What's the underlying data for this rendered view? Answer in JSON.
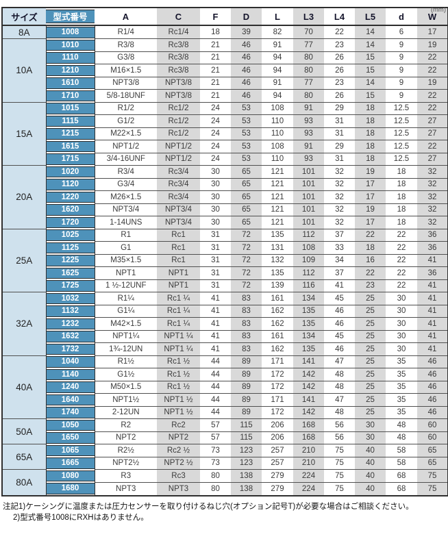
{
  "unit_label": "(mm)",
  "table": {
    "headers": [
      "サイズ",
      "型式番号",
      "A",
      "C",
      "F",
      "D",
      "L",
      "L3",
      "L4",
      "L5",
      "d",
      "W"
    ],
    "groups": [
      {
        "size": "8A",
        "rows": [
          [
            "1008",
            "R1/4",
            "Rc1/4",
            "18",
            "39",
            "82",
            "70",
            "22",
            "14",
            "6",
            "17"
          ]
        ]
      },
      {
        "size": "10A",
        "rows": [
          [
            "1010",
            "R3/8",
            "Rc3/8",
            "21",
            "46",
            "91",
            "77",
            "23",
            "14",
            "9",
            "19"
          ],
          [
            "1110",
            "G3/8",
            "Rc3/8",
            "21",
            "46",
            "94",
            "80",
            "26",
            "15",
            "9",
            "22"
          ],
          [
            "1210",
            "M16×1.5",
            "Rc3/8",
            "21",
            "46",
            "94",
            "80",
            "26",
            "15",
            "9",
            "22"
          ],
          [
            "1610",
            "NPT3/8",
            "NPT3/8",
            "21",
            "46",
            "91",
            "77",
            "23",
            "14",
            "9",
            "19"
          ],
          [
            "1710",
            "5/8-18UNF",
            "NPT3/8",
            "21",
            "46",
            "94",
            "80",
            "26",
            "15",
            "9",
            "22"
          ]
        ]
      },
      {
        "size": "15A",
        "rows": [
          [
            "1015",
            "R1/2",
            "Rc1/2",
            "24",
            "53",
            "108",
            "91",
            "29",
            "18",
            "12.5",
            "22"
          ],
          [
            "1115",
            "G1/2",
            "Rc1/2",
            "24",
            "53",
            "110",
            "93",
            "31",
            "18",
            "12.5",
            "27"
          ],
          [
            "1215",
            "M22×1.5",
            "Rc1/2",
            "24",
            "53",
            "110",
            "93",
            "31",
            "18",
            "12.5",
            "27"
          ],
          [
            "1615",
            "NPT1/2",
            "NPT1/2",
            "24",
            "53",
            "108",
            "91",
            "29",
            "18",
            "12.5",
            "22"
          ],
          [
            "1715",
            "3/4-16UNF",
            "NPT1/2",
            "24",
            "53",
            "110",
            "93",
            "31",
            "18",
            "12.5",
            "27"
          ]
        ]
      },
      {
        "size": "20A",
        "rows": [
          [
            "1020",
            "R3/4",
            "Rc3/4",
            "30",
            "65",
            "121",
            "101",
            "32",
            "19",
            "18",
            "32"
          ],
          [
            "1120",
            "G3/4",
            "Rc3/4",
            "30",
            "65",
            "121",
            "101",
            "32",
            "17",
            "18",
            "32"
          ],
          [
            "1220",
            "M26×1.5",
            "Rc3/4",
            "30",
            "65",
            "121",
            "101",
            "32",
            "17",
            "18",
            "32"
          ],
          [
            "1620",
            "NPT3/4",
            "NPT3/4",
            "30",
            "65",
            "121",
            "101",
            "32",
            "19",
            "18",
            "32"
          ],
          [
            "1720",
            "1-14UNS",
            "NPT3/4",
            "30",
            "65",
            "121",
            "101",
            "32",
            "17",
            "18",
            "32"
          ]
        ]
      },
      {
        "size": "25A",
        "rows": [
          [
            "1025",
            "R1",
            "Rc1",
            "31",
            "72",
            "135",
            "112",
            "37",
            "22",
            "22",
            "36"
          ],
          [
            "1125",
            "G1",
            "Rc1",
            "31",
            "72",
            "131",
            "108",
            "33",
            "18",
            "22",
            "36"
          ],
          [
            "1225",
            "M35×1.5",
            "Rc1",
            "31",
            "72",
            "132",
            "109",
            "34",
            "16",
            "22",
            "41"
          ],
          [
            "1625",
            "NPT1",
            "NPT1",
            "31",
            "72",
            "135",
            "112",
            "37",
            "22",
            "22",
            "36"
          ],
          [
            "1725",
            "1 ½-12UNF",
            "NPT1",
            "31",
            "72",
            "139",
            "116",
            "41",
            "23",
            "22",
            "41"
          ]
        ]
      },
      {
        "size": "32A",
        "rows": [
          [
            "1032",
            "R1¼",
            "Rc1 ¼",
            "41",
            "83",
            "161",
            "134",
            "45",
            "25",
            "30",
            "41"
          ],
          [
            "1132",
            "G1¼",
            "Rc1 ¼",
            "41",
            "83",
            "162",
            "135",
            "46",
            "25",
            "30",
            "41"
          ],
          [
            "1232",
            "M42×1.5",
            "Rc1 ¼",
            "41",
            "83",
            "162",
            "135",
            "46",
            "25",
            "30",
            "41"
          ],
          [
            "1632",
            "NPT1¼",
            "NPT1 ¼",
            "41",
            "83",
            "161",
            "134",
            "45",
            "25",
            "30",
            "41"
          ],
          [
            "1732",
            "1¾-12UN",
            "NPT1 ¼",
            "41",
            "83",
            "162",
            "135",
            "46",
            "25",
            "30",
            "41"
          ]
        ]
      },
      {
        "size": "40A",
        "rows": [
          [
            "1040",
            "R1½",
            "Rc1 ½",
            "44",
            "89",
            "171",
            "141",
            "47",
            "25",
            "35",
            "46"
          ],
          [
            "1140",
            "G1½",
            "Rc1 ½",
            "44",
            "89",
            "172",
            "142",
            "48",
            "25",
            "35",
            "46"
          ],
          [
            "1240",
            "M50×1.5",
            "Rc1 ½",
            "44",
            "89",
            "172",
            "142",
            "48",
            "25",
            "35",
            "46"
          ],
          [
            "1640",
            "NPT1½",
            "NPT1 ½",
            "44",
            "89",
            "171",
            "141",
            "47",
            "25",
            "35",
            "46"
          ],
          [
            "1740",
            "2-12UN",
            "NPT1 ½",
            "44",
            "89",
            "172",
            "142",
            "48",
            "25",
            "35",
            "46"
          ]
        ]
      },
      {
        "size": "50A",
        "rows": [
          [
            "1050",
            "R2",
            "Rc2",
            "57",
            "115",
            "206",
            "168",
            "56",
            "30",
            "48",
            "60"
          ],
          [
            "1650",
            "NPT2",
            "NPT2",
            "57",
            "115",
            "206",
            "168",
            "56",
            "30",
            "48",
            "60"
          ]
        ]
      },
      {
        "size": "65A",
        "rows": [
          [
            "1065",
            "R2½",
            "Rc2 ½",
            "73",
            "123",
            "257",
            "210",
            "75",
            "40",
            "58",
            "65"
          ],
          [
            "1665",
            "NPT2½",
            "NPT2 ½",
            "73",
            "123",
            "257",
            "210",
            "75",
            "40",
            "58",
            "65"
          ]
        ]
      },
      {
        "size": "80A",
        "rows": [
          [
            "1080",
            "R3",
            "Rc3",
            "80",
            "138",
            "279",
            "224",
            "75",
            "40",
            "68",
            "75"
          ],
          [
            "1680",
            "NPT3",
            "NPT3",
            "80",
            "138",
            "279",
            "224",
            "75",
            "40",
            "68",
            "75"
          ]
        ]
      }
    ]
  },
  "notes": [
    "注記1)ケーシングに温度または圧力センサーを取り付けるねじ穴(オプション記号T)が必要な場合はご相談ください。",
    "2)型式番号1008にRXHはありません。"
  ],
  "colors": {
    "model_blue": "#4e92ba",
    "size_light_blue": "#cfe1ed",
    "shaded_gray": "#d9d9d9",
    "border_dark": "#2e2e2e"
  }
}
